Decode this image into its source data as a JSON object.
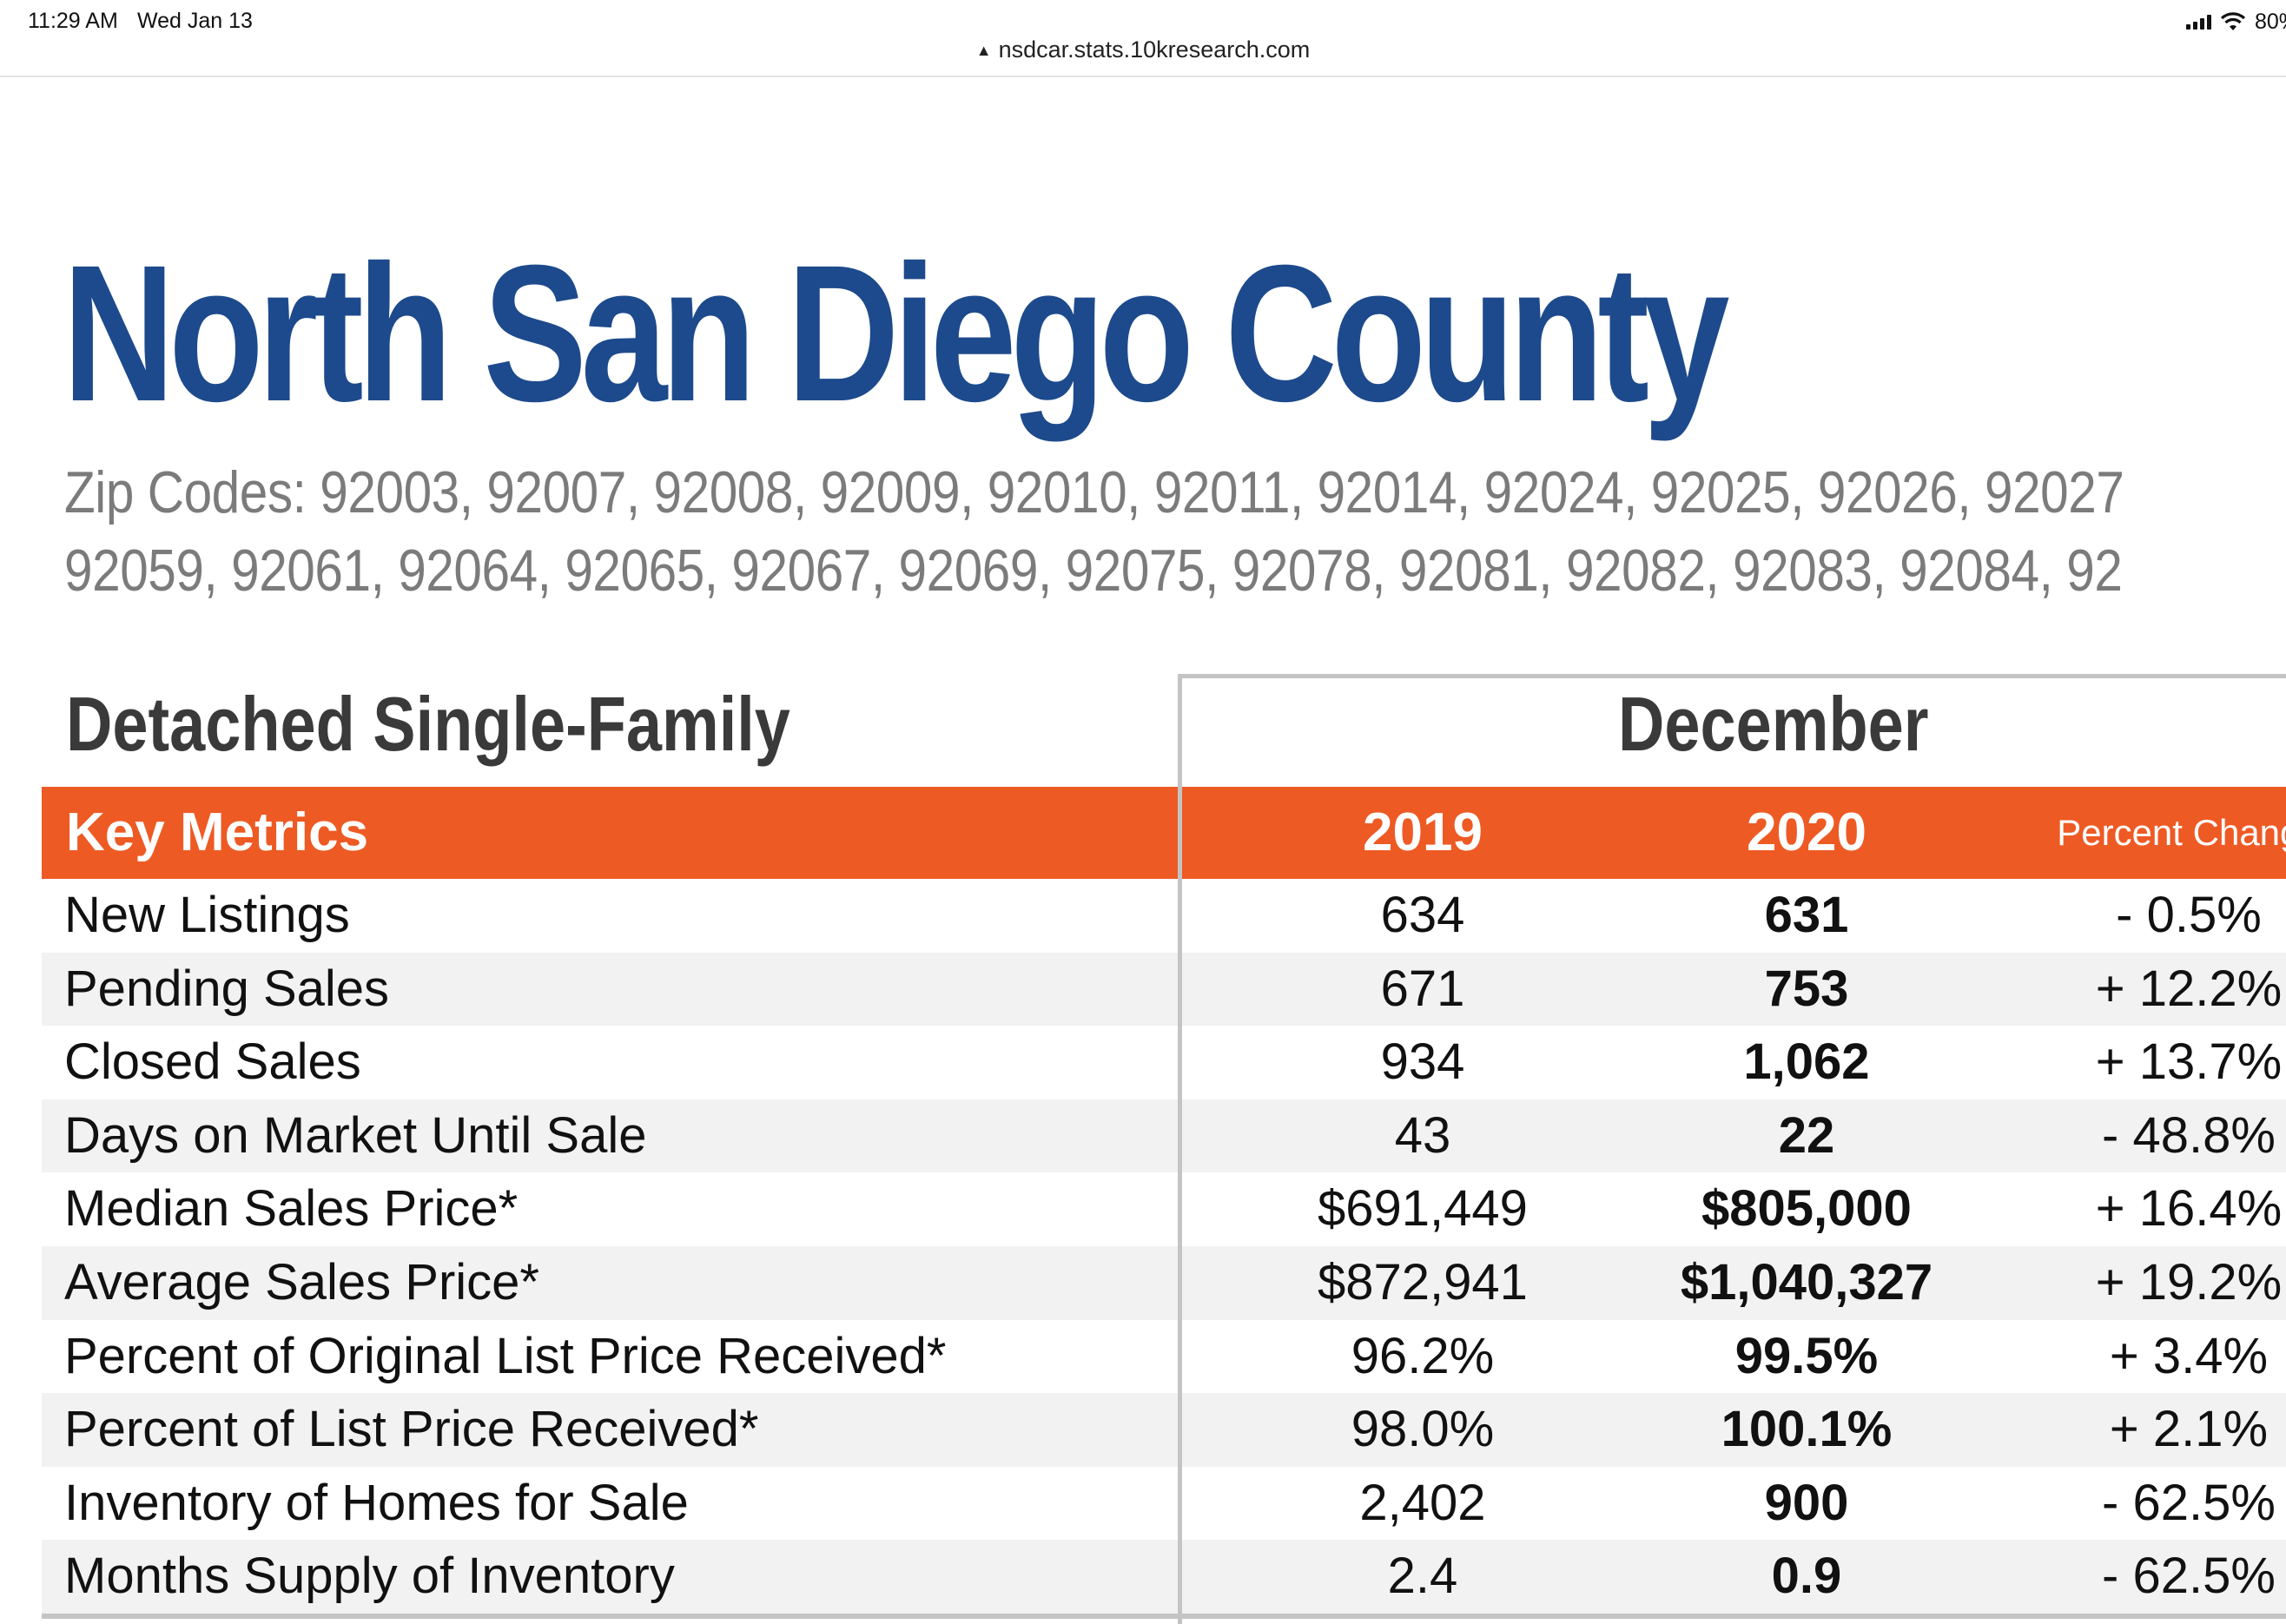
{
  "status_bar": {
    "time": "11:29 AM",
    "date": "Wed Jan 13",
    "battery": "80%"
  },
  "browser": {
    "url": "nsdcar.stats.10kresearch.com"
  },
  "report": {
    "title": "North San Diego County",
    "zip_lines": [
      "Zip Codes: 92003, 92007, 92008, 92009, 92010, 92011, 92014, 92024, 92025, 92026, 92027",
      "92059, 92061, 92064, 92065, 92067, 92069, 92075, 92078, 92081, 92082, 92083, 92084, 92"
    ],
    "section_title": "Detached Single-Family",
    "period": "December",
    "colors": {
      "title": "#1d4a8c",
      "header_bar": "#ee5a24",
      "zip_text": "#7b7b7b"
    }
  },
  "table": {
    "headers": {
      "metric": "Key Metrics",
      "year1": "2019",
      "year2": "2020",
      "change": "Percent Change"
    },
    "rows": [
      {
        "metric": "New Listings",
        "y2019": "634",
        "y2020": "631",
        "change": "- 0.5%"
      },
      {
        "metric": "Pending Sales",
        "y2019": "671",
        "y2020": "753",
        "change": "+ 12.2%"
      },
      {
        "metric": "Closed Sales",
        "y2019": "934",
        "y2020": "1,062",
        "change": "+ 13.7%"
      },
      {
        "metric": "Days on Market Until Sale",
        "y2019": "43",
        "y2020": "22",
        "change": "- 48.8%"
      },
      {
        "metric": "Median Sales Price*",
        "y2019": "$691,449",
        "y2020": "$805,000",
        "change": "+ 16.4%"
      },
      {
        "metric": "Average Sales Price*",
        "y2019": "$872,941",
        "y2020": "$1,040,327",
        "change": "+ 19.2%"
      },
      {
        "metric": "Percent of Original List Price Received*",
        "y2019": "96.2%",
        "y2020": "99.5%",
        "change": "+ 3.4%"
      },
      {
        "metric": "Percent of List Price Received*",
        "y2019": "98.0%",
        "y2020": "100.1%",
        "change": "+ 2.1%"
      },
      {
        "metric": "Inventory of Homes for Sale",
        "y2019": "2,402",
        "y2020": "900",
        "change": "- 62.5%"
      },
      {
        "metric": "Months Supply of Inventory",
        "y2019": "2.4",
        "y2020": "0.9",
        "change": "- 62.5%"
      }
    ]
  }
}
